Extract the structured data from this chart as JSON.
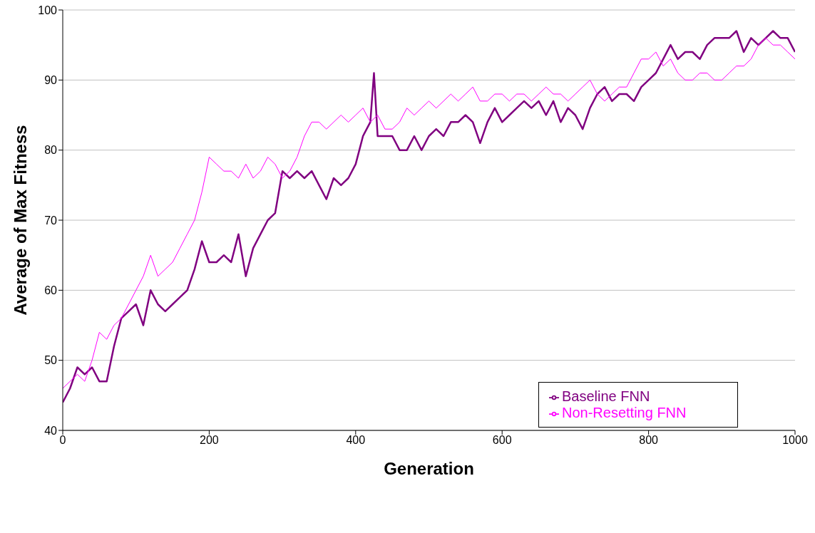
{
  "chart_data": {
    "type": "line",
    "xlabel": "Generation",
    "ylabel": "Average of Max Fitness",
    "xlim": [
      0,
      1000
    ],
    "xticks": [
      0,
      200,
      400,
      600,
      800,
      1000
    ],
    "ylim": [
      40,
      100
    ],
    "yticks": [
      40,
      50,
      60,
      70,
      80,
      90,
      100
    ],
    "grid": "y",
    "legend": "bottom right",
    "marker": "none",
    "line_style": "solid",
    "series": [
      {
        "name": "Baseline FNN",
        "color": "#800080",
        "x": [
          0,
          10,
          20,
          30,
          40,
          50,
          60,
          70,
          80,
          90,
          100,
          110,
          120,
          130,
          140,
          150,
          160,
          170,
          180,
          190,
          200,
          210,
          220,
          230,
          240,
          250,
          260,
          270,
          280,
          290,
          300,
          310,
          320,
          330,
          340,
          350,
          360,
          370,
          380,
          390,
          400,
          410,
          420,
          425,
          430,
          440,
          450,
          460,
          470,
          480,
          490,
          500,
          510,
          520,
          530,
          540,
          550,
          560,
          570,
          580,
          590,
          600,
          610,
          620,
          630,
          640,
          650,
          660,
          670,
          680,
          690,
          700,
          710,
          720,
          730,
          740,
          750,
          760,
          770,
          780,
          790,
          800,
          810,
          820,
          830,
          840,
          850,
          860,
          870,
          880,
          890,
          900,
          910,
          920,
          930,
          940,
          950,
          960,
          970,
          980,
          990,
          1000
        ],
        "values": [
          44,
          46,
          49,
          48,
          49,
          47,
          47,
          52,
          56,
          57,
          58,
          55,
          60,
          58,
          57,
          58,
          59,
          60,
          63,
          67,
          64,
          64,
          65,
          64,
          68,
          62,
          66,
          68,
          70,
          71,
          77,
          76,
          77,
          76,
          77,
          75,
          73,
          76,
          75,
          76,
          78,
          82,
          84,
          91,
          82,
          82,
          82,
          80,
          80,
          82,
          80,
          82,
          83,
          82,
          84,
          84,
          85,
          84,
          81,
          84,
          86,
          84,
          85,
          86,
          87,
          86,
          87,
          85,
          87,
          84,
          86,
          85,
          83,
          86,
          88,
          89,
          87,
          88,
          88,
          87,
          89,
          90,
          91,
          93,
          95,
          93,
          94,
          94,
          93,
          95,
          96,
          96,
          96,
          97,
          94,
          96,
          95,
          96,
          97,
          96,
          96,
          94
        ]
      },
      {
        "name": "Non-Resetting FNN",
        "color": "#ff00ff",
        "x": [
          0,
          10,
          20,
          30,
          40,
          50,
          60,
          70,
          80,
          90,
          100,
          110,
          120,
          130,
          140,
          150,
          160,
          170,
          180,
          190,
          200,
          210,
          220,
          230,
          240,
          250,
          260,
          270,
          280,
          290,
          300,
          310,
          320,
          330,
          340,
          350,
          360,
          370,
          380,
          390,
          400,
          410,
          420,
          430,
          440,
          450,
          460,
          470,
          480,
          490,
          500,
          510,
          520,
          530,
          540,
          550,
          560,
          570,
          580,
          590,
          600,
          610,
          620,
          630,
          640,
          650,
          660,
          670,
          680,
          690,
          700,
          710,
          720,
          730,
          740,
          750,
          760,
          770,
          780,
          790,
          800,
          810,
          820,
          830,
          840,
          850,
          860,
          870,
          880,
          890,
          900,
          910,
          920,
          930,
          940,
          950,
          960,
          970,
          980,
          990,
          1000
        ],
        "values": [
          46,
          47,
          48,
          47,
          50,
          54,
          53,
          55,
          56,
          58,
          60,
          62,
          65,
          62,
          63,
          64,
          66,
          68,
          70,
          74,
          79,
          78,
          77,
          77,
          76,
          78,
          76,
          77,
          79,
          78,
          76,
          77,
          79,
          82,
          84,
          84,
          83,
          84,
          85,
          84,
          85,
          86,
          84,
          85,
          83,
          83,
          84,
          86,
          85,
          86,
          87,
          86,
          87,
          88,
          87,
          88,
          89,
          87,
          87,
          88,
          88,
          87,
          88,
          88,
          87,
          88,
          89,
          88,
          88,
          87,
          88,
          89,
          90,
          88,
          87,
          88,
          89,
          89,
          91,
          93,
          93,
          94,
          92,
          93,
          91,
          90,
          90,
          91,
          91,
          90,
          90,
          91,
          92,
          92,
          93,
          95,
          96,
          95,
          95,
          94,
          93
        ]
      }
    ]
  }
}
